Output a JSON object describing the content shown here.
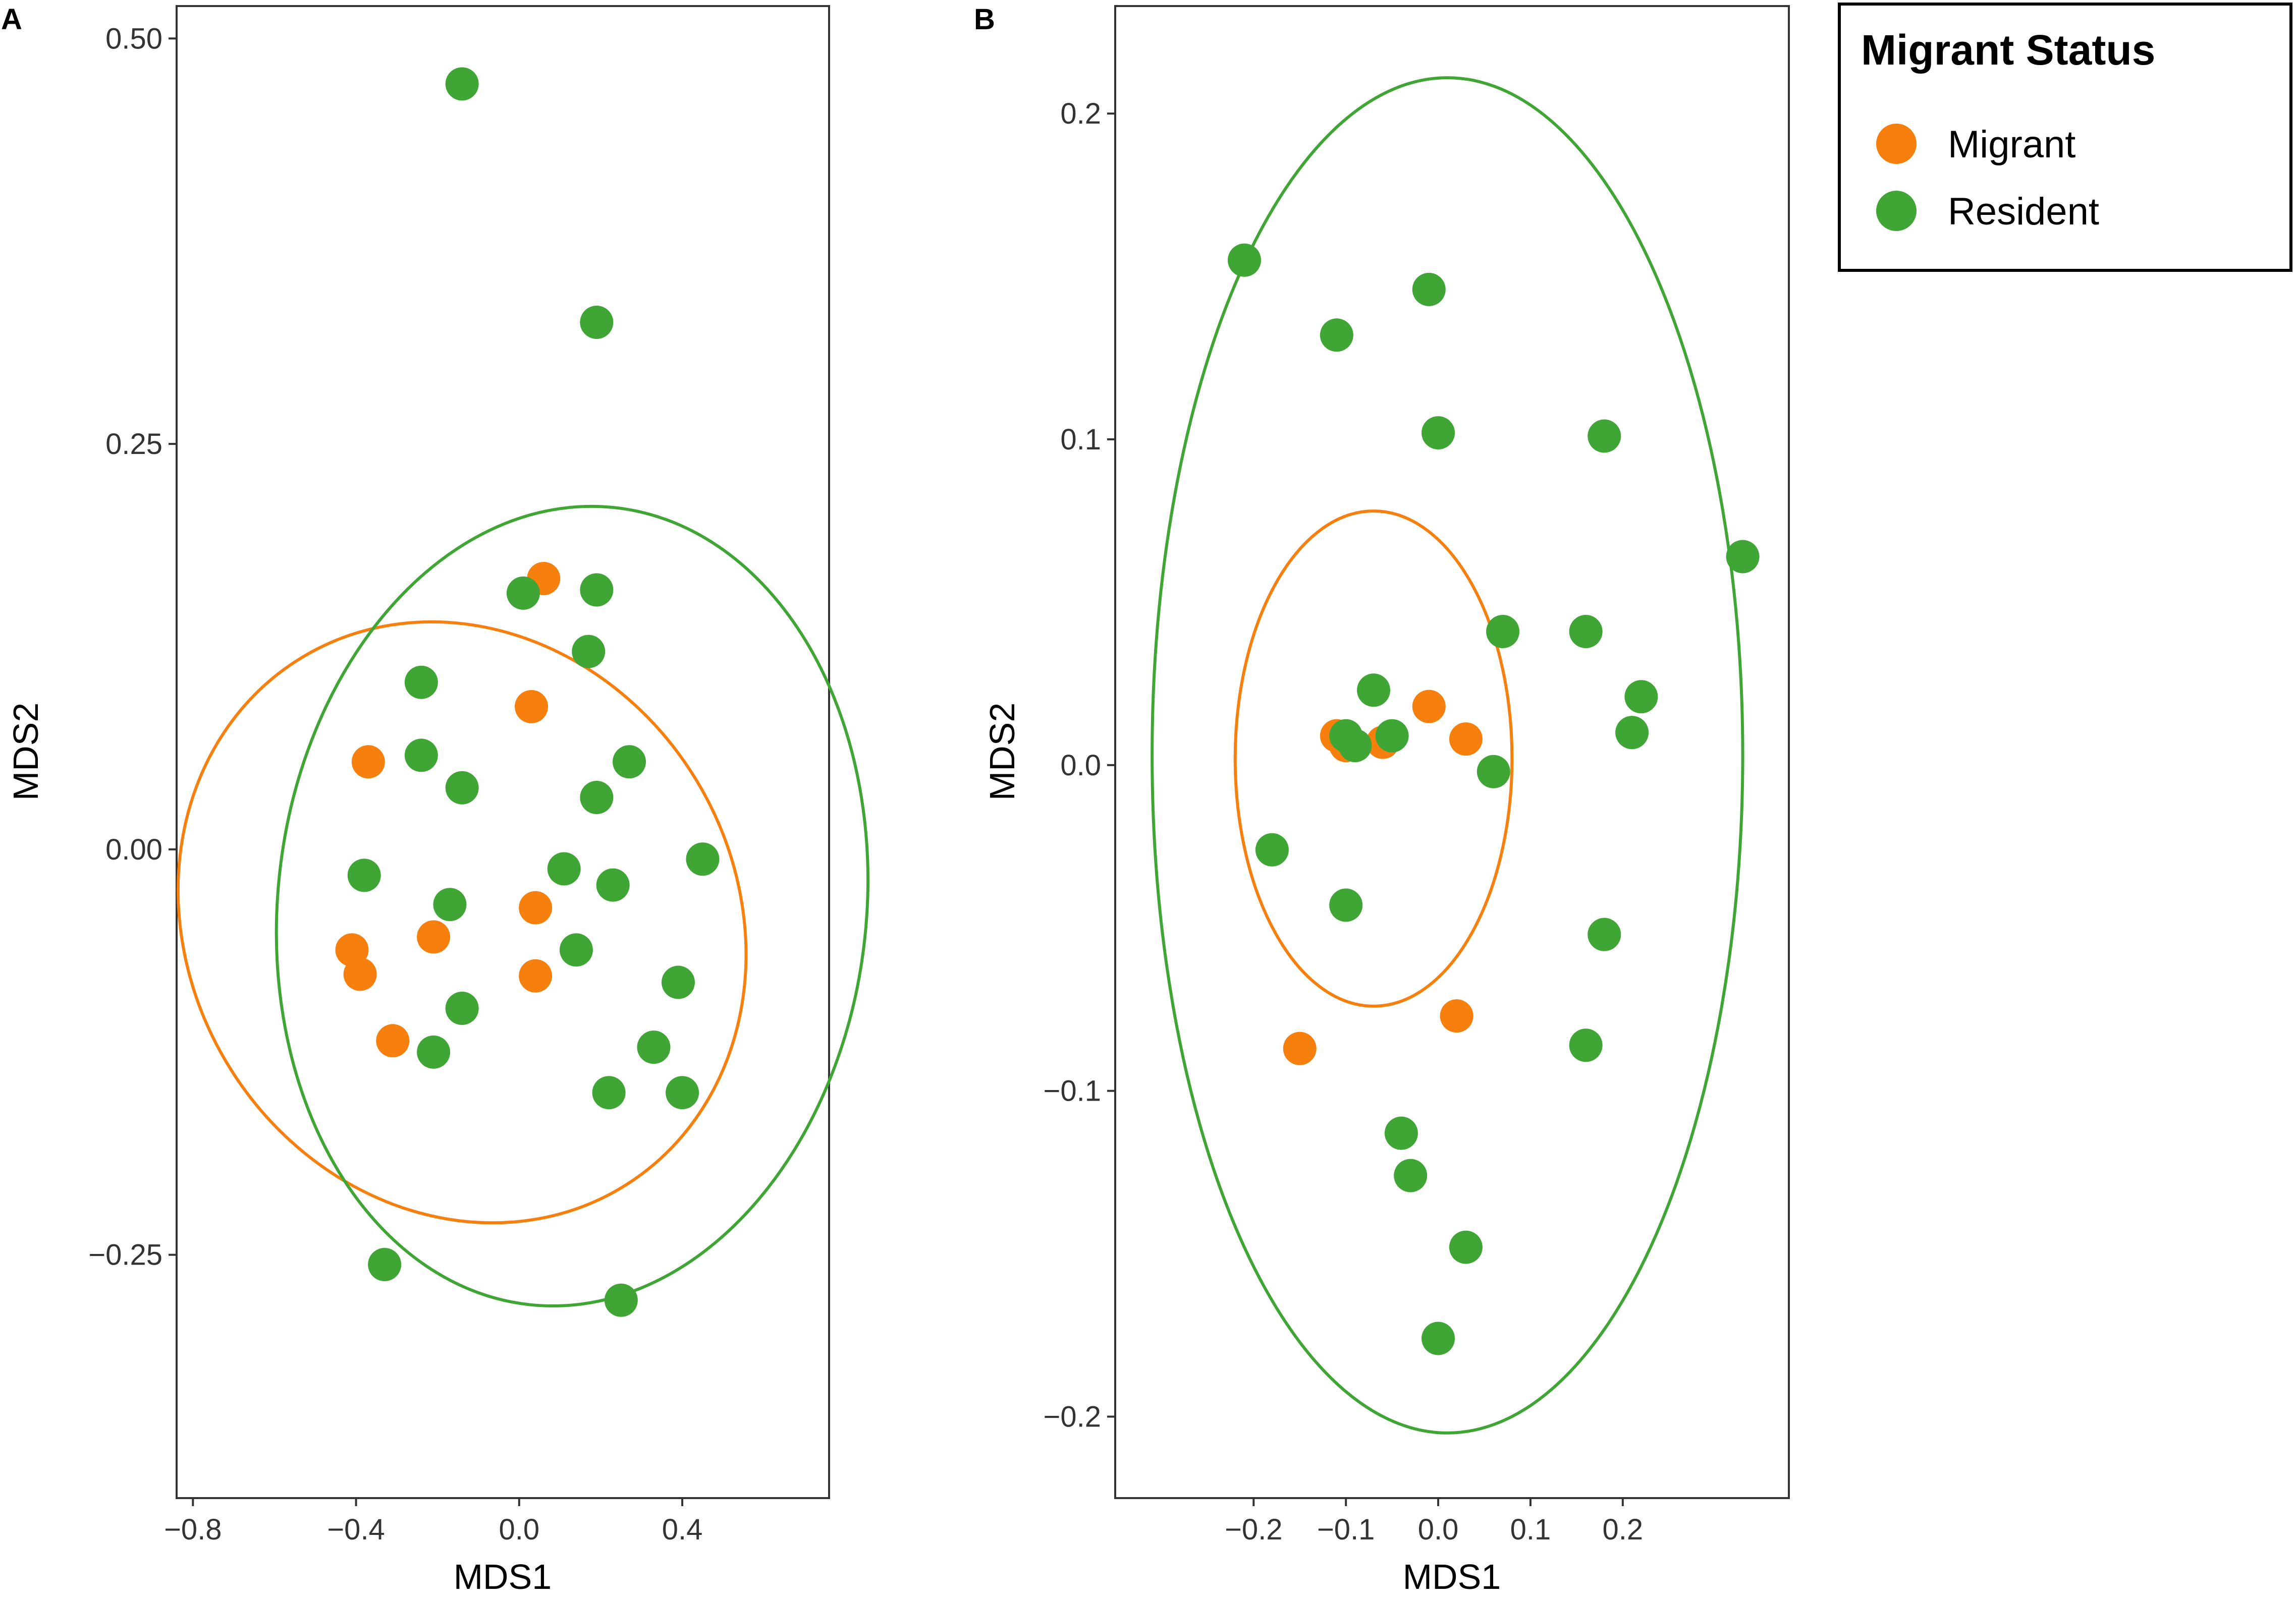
{
  "legend": {
    "title": "Migrant Status",
    "items": [
      {
        "label": "Migrant",
        "color": "#F77F0E"
      },
      {
        "label": "Resident",
        "color": "#3FA535"
      }
    ]
  },
  "chart_data": [
    {
      "panel": "A",
      "type": "scatter",
      "xlabel": "MDS1",
      "ylabel": "MDS2",
      "xlim": [
        -0.84,
        0.76
      ],
      "ylim": [
        -0.4,
        0.52
      ],
      "xticks": [
        {
          "value": -0.8,
          "label": "−0.8"
        },
        {
          "value": -0.4,
          "label": "−0.4"
        },
        {
          "value": 0.0,
          "label": "0.0"
        },
        {
          "value": 0.4,
          "label": "0.4"
        }
      ],
      "yticks": [
        {
          "value": 0.5,
          "label": "0.50"
        },
        {
          "value": 0.25,
          "label": "0.25"
        },
        {
          "value": 0.0,
          "label": "0.00"
        },
        {
          "value": -0.25,
          "label": "−0.25"
        }
      ],
      "series": [
        {
          "name": "Migrant",
          "color": "#F77F0E",
          "points": [
            [
              0.06,
              0.167
            ],
            [
              0.03,
              0.088
            ],
            [
              -0.37,
              0.054
            ],
            [
              0.04,
              -0.036
            ],
            [
              -0.21,
              -0.054
            ],
            [
              -0.41,
              -0.062
            ],
            [
              -0.39,
              -0.077
            ],
            [
              0.04,
              -0.078
            ],
            [
              -0.31,
              -0.118
            ]
          ],
          "ellipse": {
            "cx": -0.14,
            "cy": -0.045,
            "rx": 0.27,
            "ry": 0.305,
            "angle": 31
          }
        },
        {
          "name": "Resident",
          "color": "#3FA535",
          "points": [
            [
              -0.14,
              0.472
            ],
            [
              0.19,
              0.325
            ],
            [
              0.01,
              0.158
            ],
            [
              0.19,
              0.16
            ],
            [
              0.17,
              0.122
            ],
            [
              -0.24,
              0.103
            ],
            [
              -0.24,
              0.058
            ],
            [
              0.27,
              0.054
            ],
            [
              -0.14,
              0.038
            ],
            [
              0.19,
              0.032
            ],
            [
              -0.38,
              -0.016
            ],
            [
              0.11,
              -0.012
            ],
            [
              -0.17,
              -0.034
            ],
            [
              0.23,
              -0.022
            ],
            [
              0.45,
              -0.006
            ],
            [
              0.14,
              -0.062
            ],
            [
              -0.14,
              -0.098
            ],
            [
              0.39,
              -0.082
            ],
            [
              -0.21,
              -0.125
            ],
            [
              0.33,
              -0.122
            ],
            [
              0.22,
              -0.15
            ],
            [
              0.4,
              -0.15
            ],
            [
              -0.33,
              -0.256
            ],
            [
              0.25,
              -0.278
            ]
          ],
          "ellipse": {
            "cx": 0.13,
            "cy": -0.035,
            "rx": 0.29,
            "ry": 0.395,
            "angle": -6
          }
        }
      ]
    },
    {
      "panel": "B",
      "type": "scatter",
      "xlabel": "MDS1",
      "ylabel": "MDS2",
      "xlim": [
        -0.35,
        0.38
      ],
      "ylim": [
        -0.225,
        0.233
      ],
      "xticks": [
        {
          "value": -0.2,
          "label": "−0.2"
        },
        {
          "value": -0.1,
          "label": "−0.1"
        },
        {
          "value": 0.0,
          "label": "0.0"
        },
        {
          "value": 0.1,
          "label": "0.1"
        },
        {
          "value": 0.2,
          "label": "0.2"
        }
      ],
      "yticks": [
        {
          "value": 0.2,
          "label": "0.2"
        },
        {
          "value": 0.1,
          "label": "0.1"
        },
        {
          "value": 0.0,
          "label": "0.0"
        },
        {
          "value": -0.1,
          "label": "−0.1"
        },
        {
          "value": -0.2,
          "label": "−0.2"
        }
      ],
      "series": [
        {
          "name": "Migrant",
          "color": "#F77F0E",
          "points": [
            [
              -0.11,
              0.009
            ],
            [
              -0.1,
              0.006
            ],
            [
              -0.06,
              0.007
            ],
            [
              -0.01,
              0.018
            ],
            [
              0.03,
              0.008
            ],
            [
              0.02,
              -0.077
            ],
            [
              -0.15,
              -0.087
            ]
          ],
          "ellipse": {
            "cx": -0.07,
            "cy": 0.002,
            "rx": 0.15,
            "ry": 0.076,
            "angle": 0
          }
        },
        {
          "name": "Resident",
          "color": "#3FA535",
          "points": [
            [
              -0.21,
              0.155
            ],
            [
              -0.11,
              0.132
            ],
            [
              -0.01,
              0.146
            ],
            [
              0.0,
              0.102
            ],
            [
              0.18,
              0.101
            ],
            [
              0.33,
              0.064
            ],
            [
              0.07,
              0.041
            ],
            [
              0.16,
              0.041
            ],
            [
              -0.07,
              0.023
            ],
            [
              -0.1,
              0.009
            ],
            [
              -0.09,
              0.006
            ],
            [
              -0.05,
              0.009
            ],
            [
              0.22,
              0.021
            ],
            [
              0.21,
              0.01
            ],
            [
              0.06,
              -0.002
            ],
            [
              -0.18,
              -0.026
            ],
            [
              -0.1,
              -0.043
            ],
            [
              0.18,
              -0.052
            ],
            [
              0.16,
              -0.086
            ],
            [
              -0.04,
              -0.113
            ],
            [
              -0.03,
              -0.126
            ],
            [
              0.03,
              -0.148
            ],
            [
              0.0,
              -0.176
            ]
          ],
          "ellipse": {
            "cx": 0.01,
            "cy": 0.003,
            "rx": 0.32,
            "ry": 0.208,
            "angle": 0
          }
        }
      ]
    }
  ]
}
